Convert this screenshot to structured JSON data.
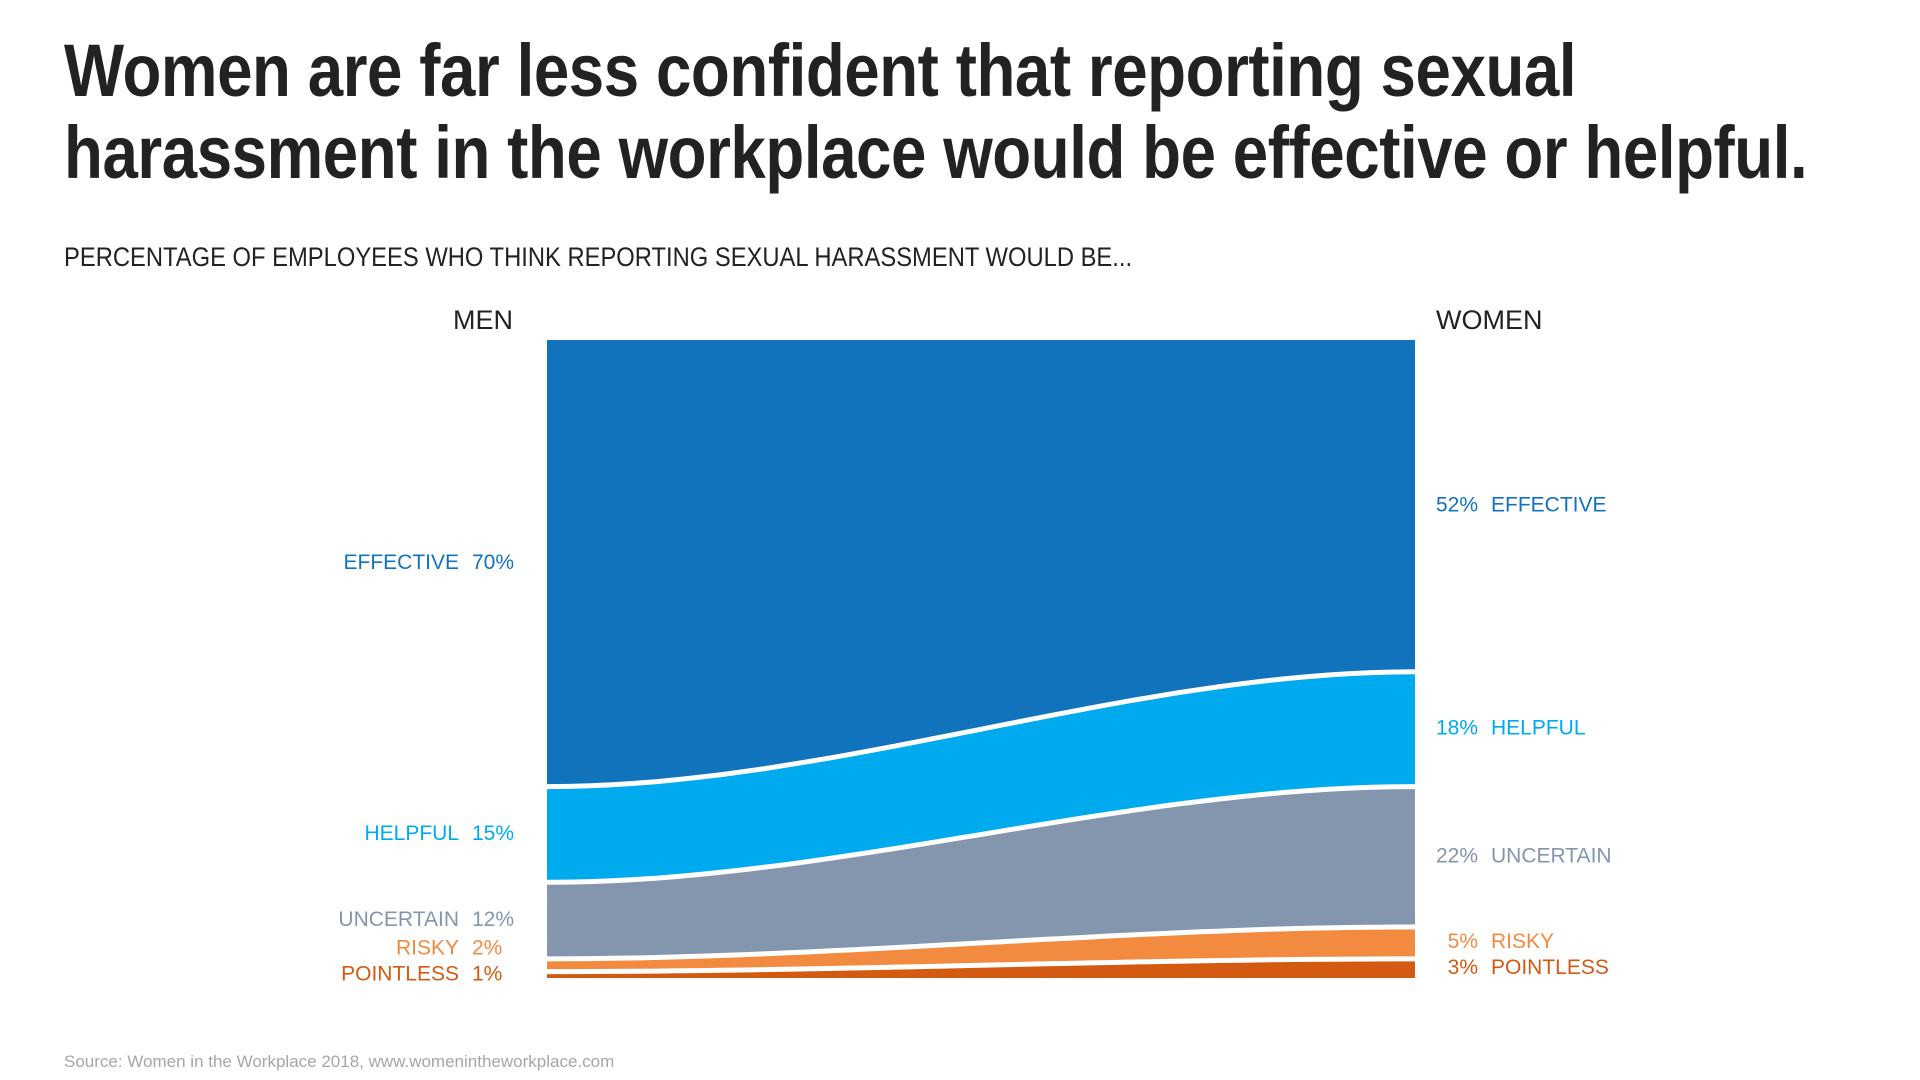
{
  "title_lines": [
    "Women are far less confident that reporting sexual",
    "harassment in the workplace would be effective or helpful."
  ],
  "subtitle": "PERCENTAGE OF EMPLOYEES WHO THINK REPORTING SEXUAL HARASSMENT WOULD BE...",
  "source": "Source: Women in the Workplace 2018,  www.womenintheworkplace.com",
  "chart_data": {
    "type": "area",
    "categories": [
      "MEN",
      "WOMEN"
    ],
    "series": [
      {
        "name": "EFFECTIVE",
        "men": 70,
        "women": 52,
        "men_label": "70%",
        "women_label": "52%",
        "color": "#1273bd"
      },
      {
        "name": "HELPFUL",
        "men": 15,
        "women": 18,
        "men_label": "15%",
        "women_label": "18%",
        "color": "#00aaee"
      },
      {
        "name": "UNCERTAIN",
        "men": 12,
        "women": 22,
        "men_label": "12%",
        "women_label": "22%",
        "color": "#8496ae"
      },
      {
        "name": "RISKY",
        "men": 2,
        "women": 5,
        "men_label": "2%",
        "women_label": "5%",
        "color": "#f28a3f"
      },
      {
        "name": "POINTLESS",
        "men": 1,
        "women": 3,
        "men_label": "1%",
        "women_label": "3%",
        "color": "#d45a12"
      }
    ],
    "legend": "none",
    "grid": false
  }
}
